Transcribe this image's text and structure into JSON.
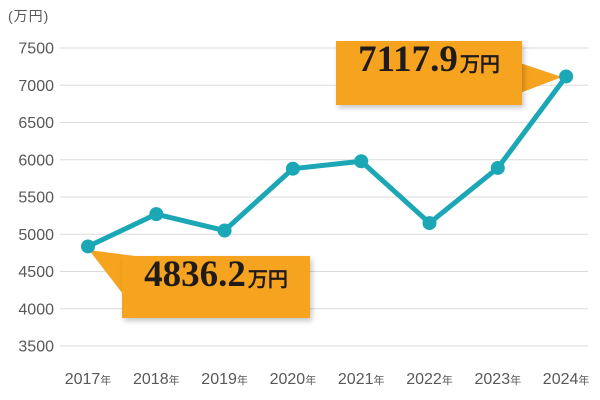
{
  "chart_data": {
    "type": "line",
    "unit_label": "(万円)",
    "categories": [
      "2017",
      "2018",
      "2019",
      "2020",
      "2021",
      "2022",
      "2023",
      "2024"
    ],
    "x_suffix": "年",
    "values": [
      4836.2,
      5270,
      5050,
      5880,
      5980,
      5150,
      5890,
      7117.9
    ],
    "yticks": [
      3500,
      4000,
      4500,
      5000,
      5500,
      6000,
      6500,
      7500
    ],
    "ylim": [
      3500,
      7500
    ],
    "ytick_step": 500,
    "grid": "horizontal",
    "legend": "none",
    "annotations": [
      {
        "anchor_category": "2017",
        "value": "4836.2",
        "unit": "万円",
        "position": "below-right"
      },
      {
        "anchor_category": "2024",
        "value": "7117.9",
        "unit": "万円",
        "position": "left"
      }
    ],
    "colors": {
      "line": "#1BA7B6",
      "marker": "#1BA7B6",
      "callout_bg": "#F6A31F",
      "callout_text": "#1f1b1b",
      "axis_text": "#595757",
      "gridline": "#DBDBDB",
      "background": "#FFFFFF"
    }
  }
}
